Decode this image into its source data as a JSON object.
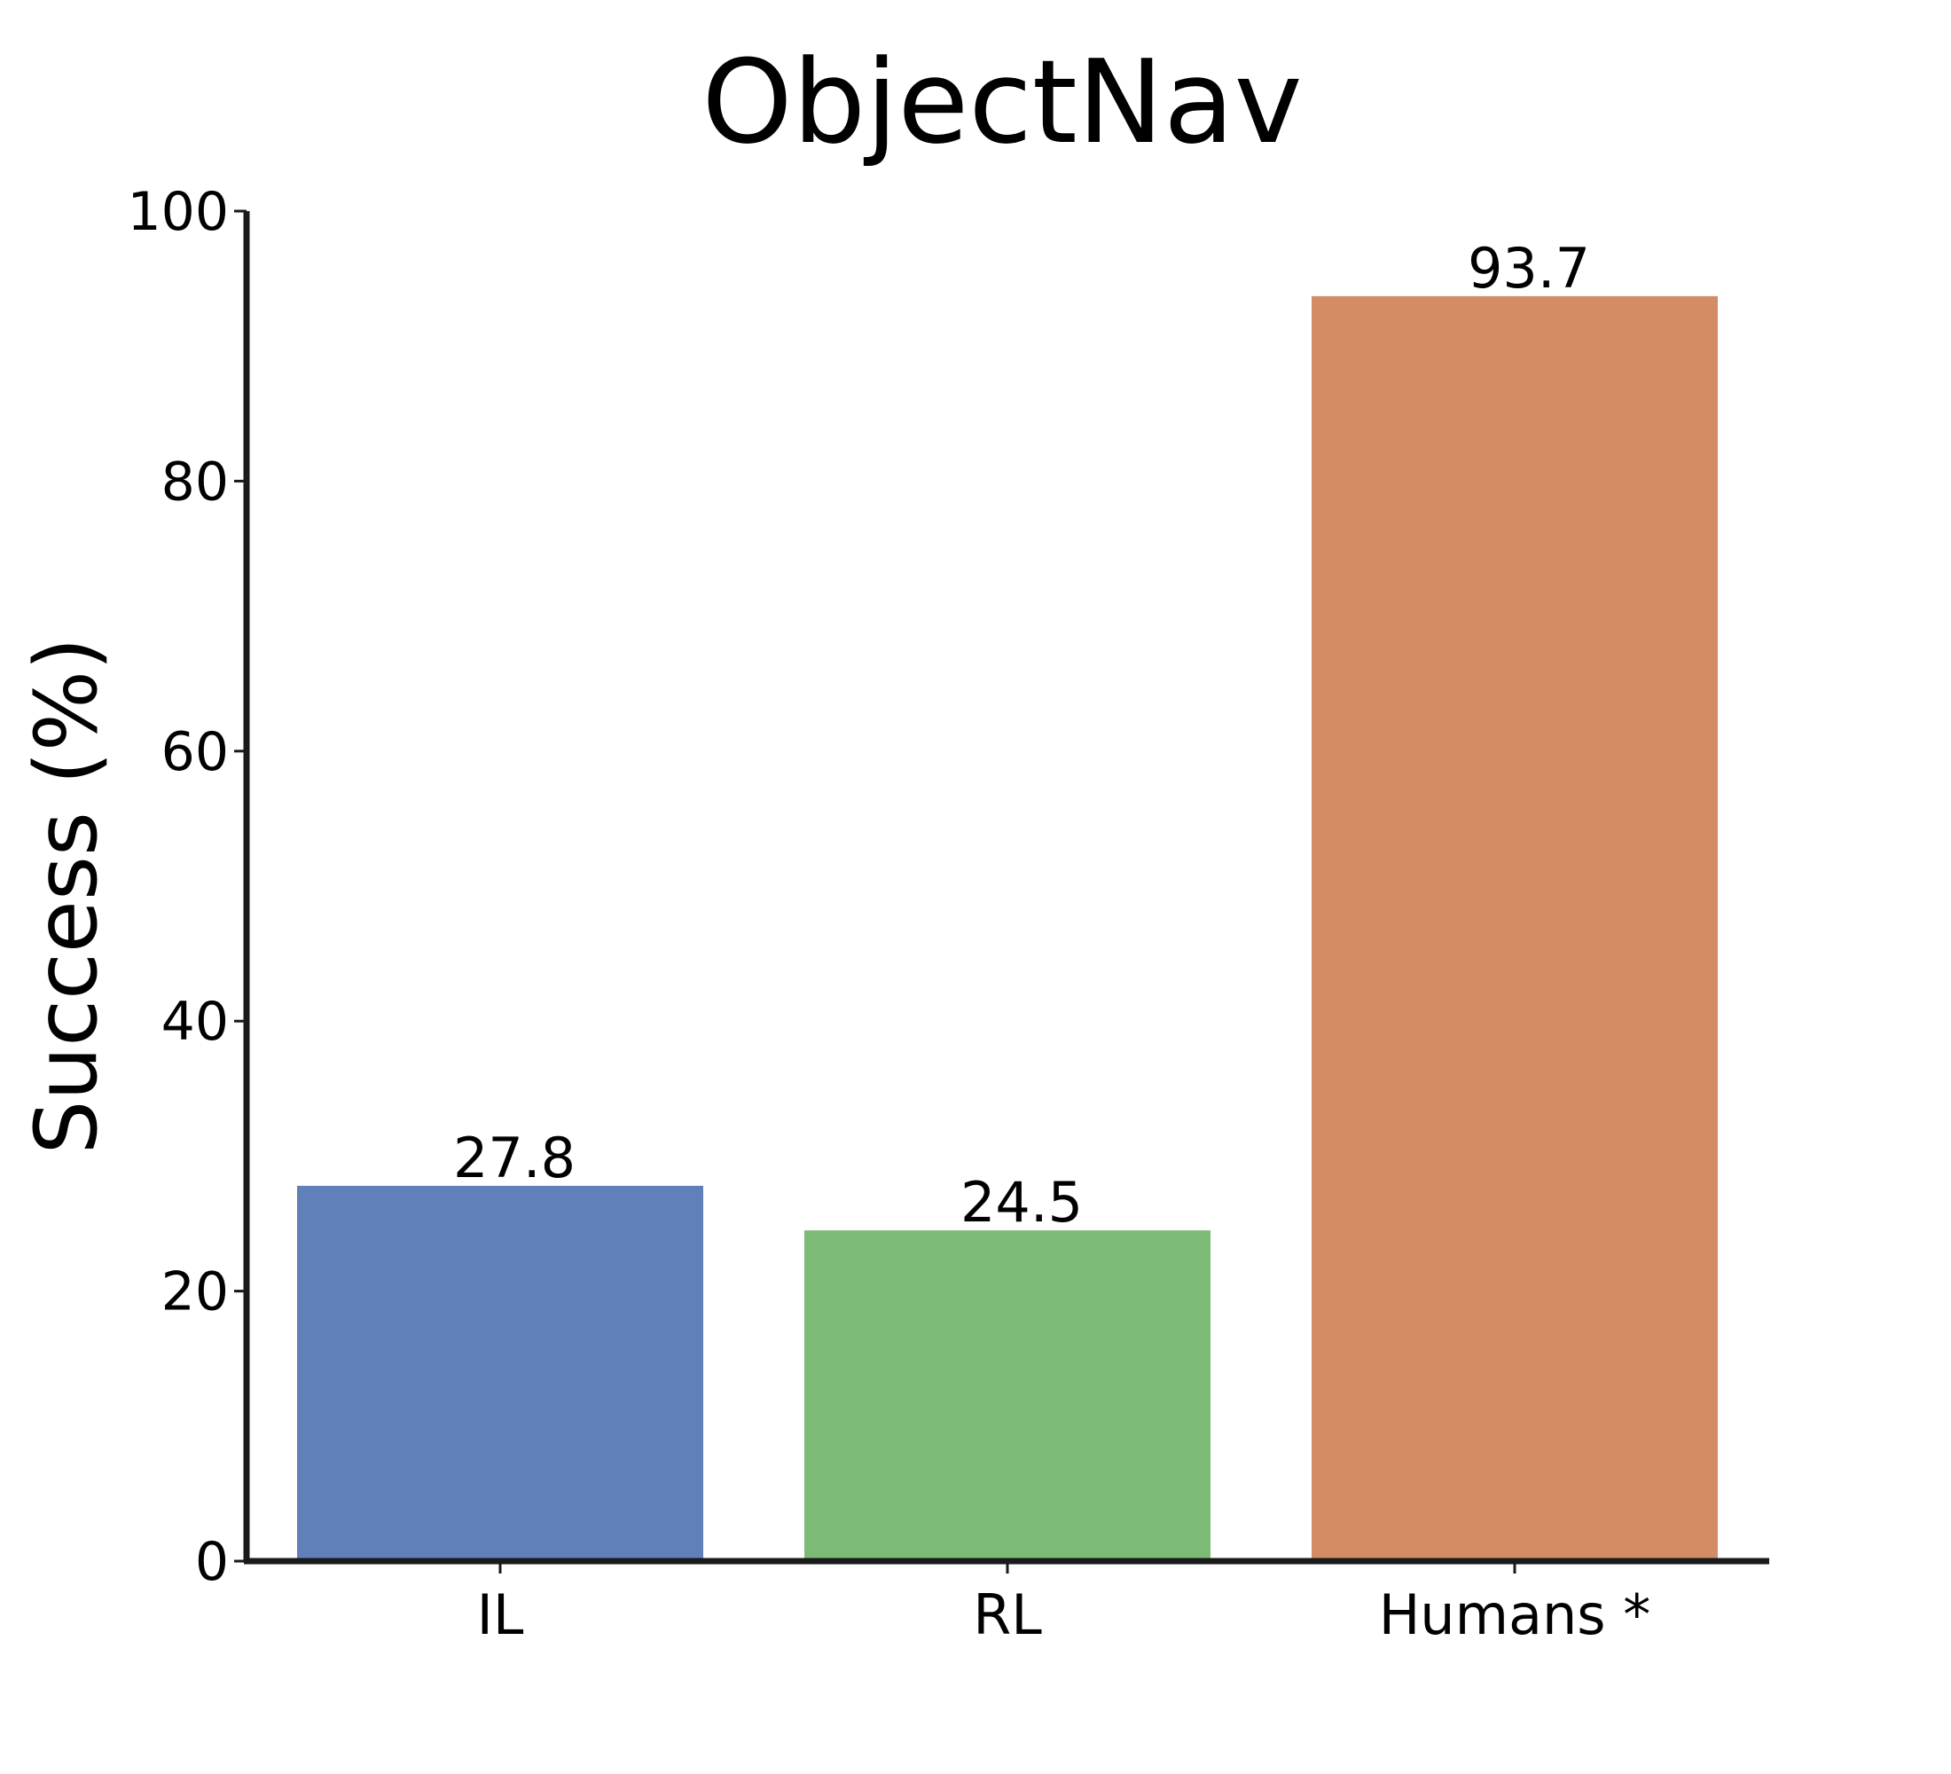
{
  "chart_data": {
    "type": "bar",
    "title": "ObjectNav",
    "xlabel": "",
    "ylabel": "Success (%)",
    "ylim": [
      0,
      100
    ],
    "yticks": [
      "0",
      "20",
      "40",
      "60",
      "80",
      "100"
    ],
    "categories": [
      "IL",
      "RL",
      "Humans *"
    ],
    "values": [
      27.8,
      24.5,
      93.7
    ],
    "value_labels": [
      "27.8",
      "24.5",
      "93.7"
    ],
    "colors": [
      "#6180b9",
      "#7bbb75",
      "#d38c66"
    ],
    "grid": false,
    "legend": "none"
  }
}
